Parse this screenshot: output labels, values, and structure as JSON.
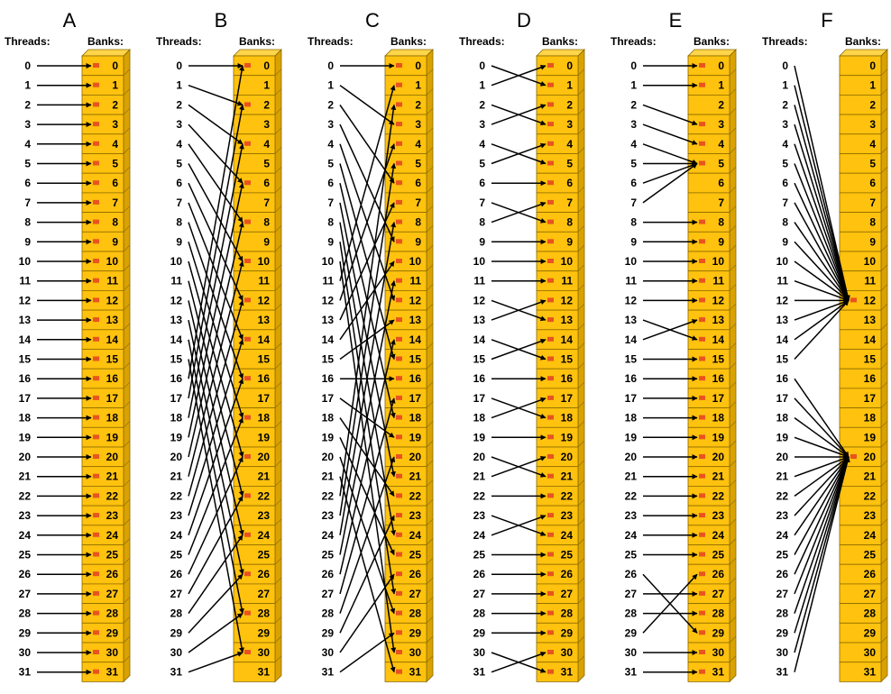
{
  "header_threads": "Threads:",
  "header_banks": "Banks:",
  "colors": {
    "bank_fill": "#FFC20E",
    "bank_side": "#D9A200",
    "bank_top": "#FFD54A",
    "bank_stroke": "#8A6A00",
    "marker": "#E8531F",
    "line": "#000000"
  },
  "panels": [
    {
      "label": "A",
      "mapping": [
        0,
        1,
        2,
        3,
        4,
        5,
        6,
        7,
        8,
        9,
        10,
        11,
        12,
        13,
        14,
        15,
        16,
        17,
        18,
        19,
        20,
        21,
        22,
        23,
        24,
        25,
        26,
        27,
        28,
        29,
        30,
        31
      ]
    },
    {
      "label": "B",
      "mapping": [
        0,
        2,
        4,
        6,
        8,
        10,
        12,
        14,
        16,
        18,
        20,
        22,
        24,
        26,
        28,
        30,
        0,
        2,
        4,
        6,
        8,
        10,
        12,
        14,
        16,
        18,
        20,
        22,
        24,
        26,
        28,
        30
      ]
    },
    {
      "label": "C",
      "mapping": [
        0,
        3,
        6,
        9,
        12,
        15,
        18,
        21,
        24,
        27,
        30,
        1,
        4,
        7,
        10,
        13,
        16,
        19,
        22,
        25,
        28,
        31,
        2,
        5,
        8,
        11,
        14,
        17,
        20,
        23,
        26,
        29
      ]
    },
    {
      "label": "D",
      "mapping": [
        1,
        0,
        3,
        2,
        5,
        4,
        6,
        8,
        7,
        9,
        10,
        11,
        13,
        12,
        15,
        14,
        16,
        18,
        17,
        19,
        21,
        20,
        22,
        24,
        23,
        25,
        26,
        27,
        28,
        29,
        31,
        30
      ]
    },
    {
      "label": "E",
      "mapping": [
        0,
        1,
        3,
        4,
        5,
        5,
        5,
        5,
        8,
        9,
        10,
        11,
        12,
        14,
        13,
        15,
        16,
        17,
        18,
        19,
        20,
        21,
        22,
        23,
        24,
        25,
        29,
        27,
        28,
        26,
        30,
        31
      ]
    },
    {
      "label": "F",
      "mapping": [
        12,
        12,
        12,
        12,
        12,
        12,
        12,
        12,
        12,
        12,
        12,
        12,
        12,
        12,
        12,
        12,
        20,
        20,
        20,
        20,
        20,
        20,
        20,
        20,
        20,
        20,
        20,
        20,
        20,
        20,
        20,
        20
      ]
    }
  ],
  "threads": [
    "0",
    "1",
    "2",
    "3",
    "4",
    "5",
    "6",
    "7",
    "8",
    "9",
    "10",
    "11",
    "12",
    "13",
    "14",
    "15",
    "16",
    "17",
    "18",
    "19",
    "20",
    "21",
    "22",
    "23",
    "24",
    "25",
    "26",
    "27",
    "28",
    "29",
    "30",
    "31"
  ],
  "banks": [
    "0",
    "1",
    "2",
    "3",
    "4",
    "5",
    "6",
    "7",
    "8",
    "9",
    "10",
    "11",
    "12",
    "13",
    "14",
    "15",
    "16",
    "17",
    "18",
    "19",
    "20",
    "21",
    "22",
    "23",
    "24",
    "25",
    "26",
    "27",
    "28",
    "29",
    "30",
    "31"
  ]
}
